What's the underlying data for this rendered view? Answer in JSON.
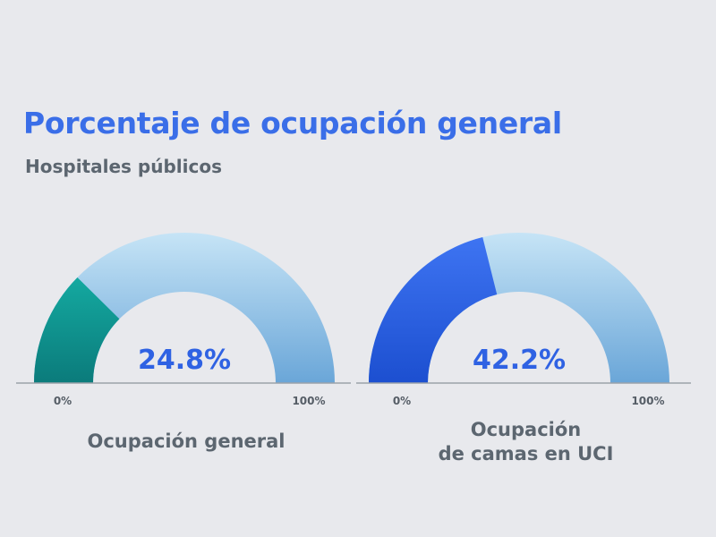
{
  "title": "Porcentaje de ocupación general",
  "subtitle": "Hospitales públicos",
  "colors": {
    "track_top": "#c6e4f6",
    "track_bottom": "#6aa6d8",
    "gauge1_fill_top": "#14a9a0",
    "gauge1_fill_bottom": "#0b7b7b",
    "gauge2_fill_top": "#3e74f2",
    "gauge2_fill_bottom": "#1c4fd0",
    "value_text": "#2f62e3",
    "baseline": "#9aa2aa"
  },
  "chart_data": [
    {
      "type": "gauge",
      "value": 24.8,
      "range": [
        0,
        100
      ],
      "value_label": "24.8%",
      "min_label": "0%",
      "max_label": "100%",
      "label_lines": [
        "Ocupación general"
      ]
    },
    {
      "type": "gauge",
      "value": 42.2,
      "range": [
        0,
        100
      ],
      "value_label": "42.2%",
      "min_label": "0%",
      "max_label": "100%",
      "label_lines": [
        "Ocupación",
        "de camas en UCI"
      ]
    }
  ]
}
